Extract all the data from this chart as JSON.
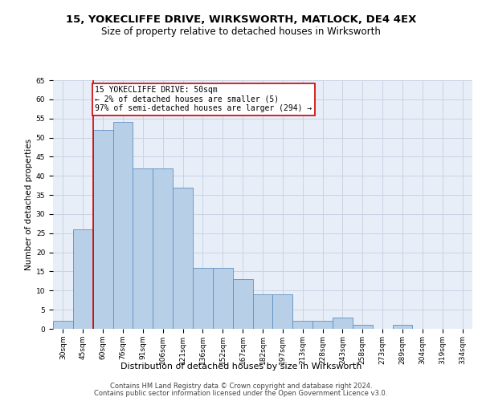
{
  "title": "15, YOKECLIFFE DRIVE, WIRKSWORTH, MATLOCK, DE4 4EX",
  "subtitle": "Size of property relative to detached houses in Wirksworth",
  "xlabel": "Distribution of detached houses by size in Wirksworth",
  "ylabel": "Number of detached properties",
  "categories": [
    "30sqm",
    "45sqm",
    "60sqm",
    "76sqm",
    "91sqm",
    "106sqm",
    "121sqm",
    "136sqm",
    "152sqm",
    "167sqm",
    "182sqm",
    "197sqm",
    "213sqm",
    "228sqm",
    "243sqm",
    "258sqm",
    "273sqm",
    "289sqm",
    "304sqm",
    "319sqm",
    "334sqm"
  ],
  "values": [
    2,
    26,
    52,
    54,
    42,
    42,
    37,
    16,
    16,
    13,
    9,
    9,
    2,
    2,
    3,
    1,
    0,
    1,
    0,
    0,
    0
  ],
  "bar_color": "#b8cfe8",
  "bar_edge_color": "#6090c0",
  "bar_edge_width": 0.6,
  "redline_x": 1.5,
  "annotation_line1": "15 YOKECLIFFE DRIVE: 50sqm",
  "annotation_line2": "← 2% of detached houses are smaller (5)",
  "annotation_line3": "97% of semi-detached houses are larger (294) →",
  "annotation_box_color": "#ffffff",
  "annotation_box_edge": "#cc0000",
  "redline_color": "#cc0000",
  "ylim": [
    0,
    65
  ],
  "yticks": [
    0,
    5,
    10,
    15,
    20,
    25,
    30,
    35,
    40,
    45,
    50,
    55,
    60,
    65
  ],
  "grid_color": "#c8d4e4",
  "background_color": "#e8eef8",
  "footer1": "Contains HM Land Registry data © Crown copyright and database right 2024.",
  "footer2": "Contains public sector information licensed under the Open Government Licence v3.0.",
  "title_fontsize": 9.5,
  "subtitle_fontsize": 8.5,
  "xlabel_fontsize": 8,
  "ylabel_fontsize": 7.5,
  "tick_fontsize": 6.5,
  "annotation_fontsize": 7,
  "footer_fontsize": 6
}
